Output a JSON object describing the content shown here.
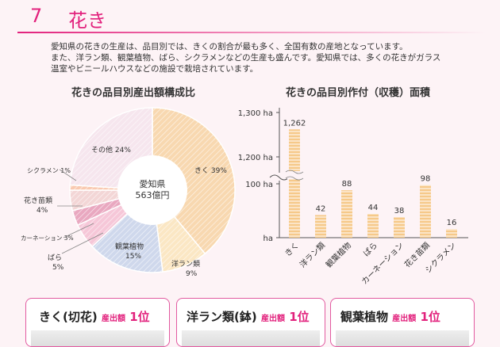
{
  "header": {
    "number": "7",
    "title": "花き"
  },
  "intro": {
    "line1": "愛知県の花きの生産は、品目別では、きくの割合が最も多く、全国有数の産地となっています。",
    "line2": "また、洋ラン類、観葉植物、ばら、シクラメンなどの生産も盛んです。愛知県では、多くの花きがガラス",
    "line3": "温室やビニールハウスなどの施設で栽培されています。"
  },
  "colors": {
    "accent": "#e2227d",
    "border": "#e25aa0",
    "bar": "#f6c98a"
  },
  "chart_data": [
    {
      "type": "pie",
      "title": "花きの品目別産出額構成比",
      "center_label": [
        "愛知県",
        "563億円"
      ],
      "slices": [
        {
          "label": "きく",
          "value": 39,
          "color": "#f8d8b0"
        },
        {
          "label": "洋ラン類",
          "value": 9,
          "color": "#fbe7c4"
        },
        {
          "label": "観葉植物",
          "value": 15,
          "color": "#cfd8ec"
        },
        {
          "label": "ばら",
          "value": 5,
          "color": "#f6c7d8"
        },
        {
          "label": "カーネーション",
          "value": 3,
          "color": "#e9a8c0"
        },
        {
          "label": "花き苗類",
          "value": 4,
          "color": "#f3d6d6"
        },
        {
          "label": "シクラメン",
          "value": 1,
          "color": "#f9c9b0"
        },
        {
          "label": "その他",
          "value": 24,
          "color": "#f6e6ee"
        }
      ],
      "label_text": {
        "kiku": "きく 39%",
        "yoran": [
          "洋ラン類",
          "9%"
        ],
        "kanyo": [
          "観葉植物",
          "15%"
        ],
        "bara": [
          "ばら",
          "5%"
        ],
        "carnation": "カーネーション 3%",
        "nae": [
          "花き苗類",
          "4%"
        ],
        "cyclamen": "シクラメン 1%",
        "sonota": "その他 24%"
      }
    },
    {
      "type": "bar",
      "title": "花きの品目別作付（収穫）面積",
      "categories": [
        "きく",
        "洋ラン類",
        "観葉植物",
        "ばら",
        "カーネーション",
        "花き苗類",
        "シクラメン"
      ],
      "values": [
        1262,
        42,
        88,
        44,
        38,
        98,
        16
      ],
      "value_labels": [
        "1,262",
        "42",
        "88",
        "44",
        "38",
        "98",
        "16"
      ],
      "y_ticks": [
        "1,300 ha",
        "1,200 ha",
        "100 ha",
        "ha"
      ],
      "axis_break": [
        100,
        1200
      ]
    }
  ],
  "cards": [
    {
      "name": "きく(切花)",
      "sub": "産出額",
      "rank": "1位"
    },
    {
      "name": "洋ラン類(鉢)",
      "sub": "産出額",
      "rank": "1位"
    },
    {
      "name": "観葉植物",
      "sub": "産出額",
      "rank": "1位"
    }
  ]
}
